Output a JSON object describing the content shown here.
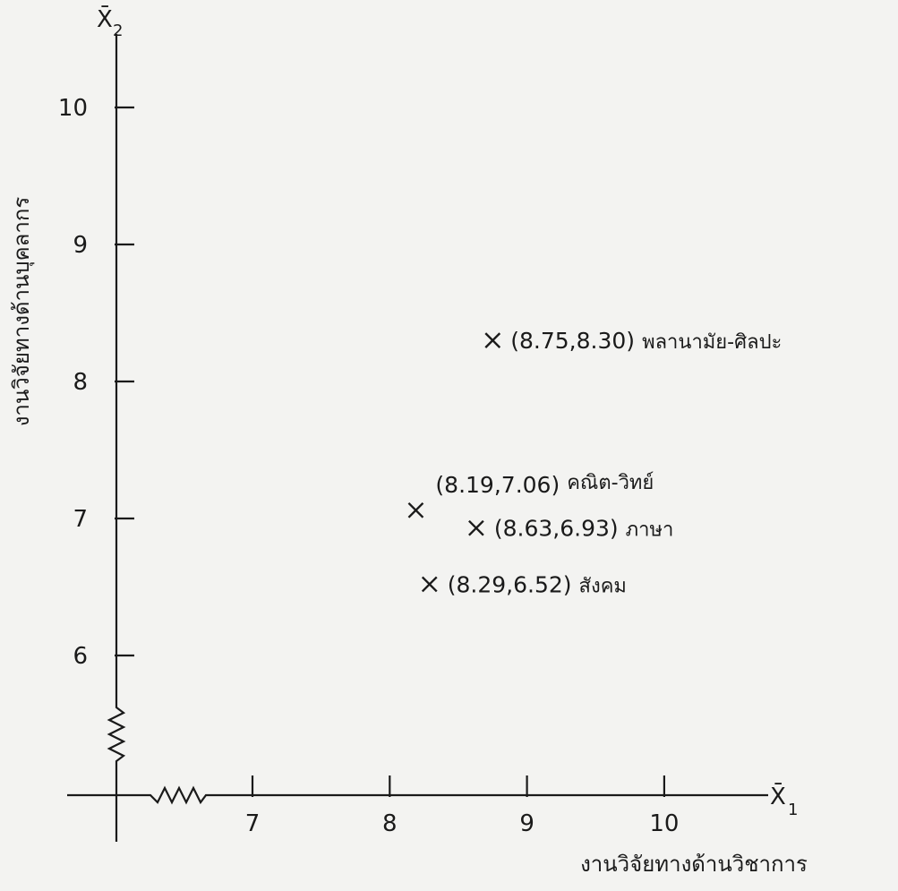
{
  "chart_data": {
    "type": "scatter",
    "xlabel": "งานวิจัยทางด้านวิชาการ",
    "ylabel": "งานวิจัยทางด้านบุคลากร",
    "x_axis_symbol": "X̄",
    "x_axis_subscript": "1",
    "y_axis_symbol": "X̄",
    "y_axis_subscript": "2",
    "xticks": [
      7,
      8,
      9,
      10
    ],
    "yticks": [
      6,
      7,
      8,
      9,
      10
    ],
    "axis_break": true,
    "points": [
      {
        "x": 8.75,
        "y": 8.3,
        "coord_label": "(8.75,8.30)",
        "name": "พลานามัย-ศิลปะ",
        "label_side": "right"
      },
      {
        "x": 8.19,
        "y": 7.06,
        "coord_label": "(8.19,7.06)",
        "name": "คณิต-วิทย์",
        "label_side": "above-right"
      },
      {
        "x": 8.63,
        "y": 6.93,
        "coord_label": "(8.63,6.93)",
        "name": "ภาษา",
        "label_side": "right"
      },
      {
        "x": 8.29,
        "y": 6.52,
        "coord_label": "(8.29,6.52)",
        "name": "สังคม",
        "label_side": "right"
      }
    ]
  }
}
